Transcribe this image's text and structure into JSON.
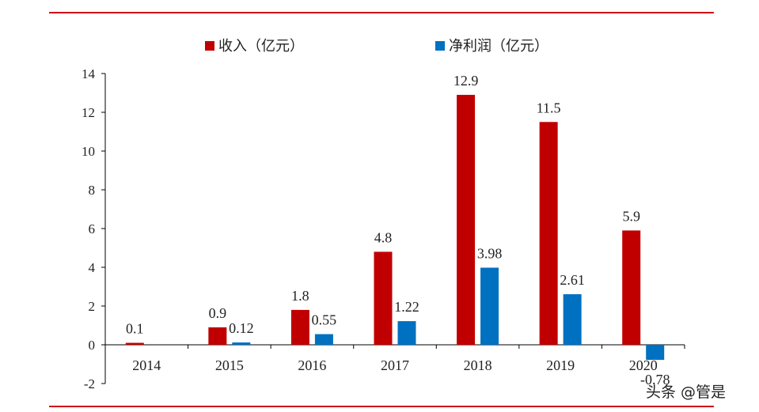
{
  "colors": {
    "rule": "#d0021b",
    "revenue": "#c00000",
    "profit": "#0070c0",
    "negative_label": "#ff0000",
    "axis": "#000000"
  },
  "watermark": "头条 @管是",
  "chart_data": {
    "type": "bar",
    "title": "",
    "xlabel": "",
    "ylabel": "",
    "categories": [
      "2014",
      "2015",
      "2016",
      "2017",
      "2018",
      "2019",
      "2020"
    ],
    "ylim": [
      -2,
      14
    ],
    "yticks": [
      -2,
      0,
      2,
      4,
      6,
      8,
      10,
      12,
      14
    ],
    "legend_position": "top",
    "grid": false,
    "series": [
      {
        "name": "收入（亿元）",
        "color": "#c00000",
        "values": [
          0.1,
          0.9,
          1.8,
          4.8,
          12.9,
          11.5,
          5.9
        ],
        "labels": [
          "0.1",
          "0.9",
          "1.8",
          "4.8",
          "12.9",
          "11.5",
          "5.9"
        ]
      },
      {
        "name": "净利润（亿元）",
        "color": "#0070c0",
        "values": [
          null,
          0.12,
          0.55,
          1.22,
          3.98,
          2.61,
          -0.78
        ],
        "labels": [
          "",
          "0.12",
          "0.55",
          "1.22",
          "3.98",
          "2.61",
          "-0.78"
        ]
      }
    ]
  }
}
